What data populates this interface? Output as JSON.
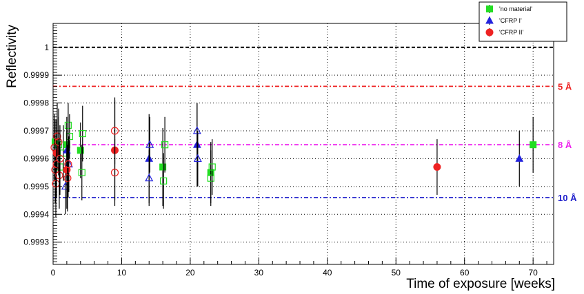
{
  "chart_data": {
    "type": "scatter",
    "title": "",
    "xlabel": "Time of exposure [weeks]",
    "ylabel": "Reflectivity",
    "xlim": [
      0,
      73
    ],
    "ylim": [
      0.99922,
      1.000086
    ],
    "x_ticks": [
      0,
      10,
      20,
      30,
      40,
      50,
      60,
      70
    ],
    "y_ticks": [
      0.9993,
      0.9994,
      0.9995,
      0.9996,
      0.9997,
      0.9998,
      0.9999,
      1
    ],
    "y_tick_labels": [
      "0.9993",
      "0.9994",
      "0.9995",
      "0.9996",
      "0.9997",
      "0.9998",
      "0.9999",
      "1"
    ],
    "grid": true,
    "legend_position": "top-right",
    "reference_lines": [
      {
        "label": "",
        "y": 1.0,
        "color": "#000000"
      },
      {
        "label": "5 Å",
        "y": 0.99986,
        "color": "#ee2222"
      },
      {
        "label": "8 Å",
        "y": 0.99965,
        "color": "#ee22ee"
      },
      {
        "label": "10 Å",
        "y": 0.99946,
        "color": "#2222cc"
      }
    ],
    "series": [
      {
        "name": "'no material'",
        "color": "#22dd22",
        "marker": "square",
        "values": [
          {
            "x": 0.3,
            "y": 0.99966,
            "err": 8e-05,
            "filled": true
          },
          {
            "x": 0.8,
            "y": 0.99965,
            "err": 0.0001,
            "filled": false
          },
          {
            "x": 1.0,
            "y": 0.99957,
            "err": 0.0001,
            "filled": false
          },
          {
            "x": 1.5,
            "y": 0.99962,
            "err": 0.0001,
            "filled": false
          },
          {
            "x": 2.0,
            "y": 0.99965,
            "err": 0.0001,
            "filled": true
          },
          {
            "x": 2.2,
            "y": 0.99972,
            "err": 8e-05,
            "filled": false
          },
          {
            "x": 2.4,
            "y": 0.99968,
            "err": 8e-05,
            "filled": false
          },
          {
            "x": 4.0,
            "y": 0.99963,
            "err": 0.0001,
            "filled": true
          },
          {
            "x": 4.2,
            "y": 0.99955,
            "err": 0.0001,
            "filled": false
          },
          {
            "x": 4.3,
            "y": 0.99969,
            "err": 0.0001,
            "filled": false
          },
          {
            "x": 16.0,
            "y": 0.99957,
            "err": 0.00014,
            "filled": true
          },
          {
            "x": 16.1,
            "y": 0.99952,
            "err": 0.0001,
            "filled": false
          },
          {
            "x": 16.3,
            "y": 0.99965,
            "err": 0.0001,
            "filled": false
          },
          {
            "x": 23.0,
            "y": 0.99955,
            "err": 0.00011,
            "filled": true
          },
          {
            "x": 23.0,
            "y": 0.99953,
            "err": 0.0001,
            "filled": false
          },
          {
            "x": 23.2,
            "y": 0.99957,
            "err": 0.0001,
            "filled": false
          },
          {
            "x": 70.0,
            "y": 0.99965,
            "err": 0.0001,
            "filled": true
          }
        ]
      },
      {
        "name": "'CFRP I'",
        "color": "#2222dd",
        "marker": "triangle",
        "values": [
          {
            "x": 1.8,
            "y": 0.9995,
            "err": 0.0001,
            "filled": false
          },
          {
            "x": 2.0,
            "y": 0.99963,
            "err": 0.0001,
            "filled": true
          },
          {
            "x": 2.3,
            "y": 0.99958,
            "err": 0.0001,
            "filled": false
          },
          {
            "x": 14.0,
            "y": 0.9996,
            "err": 0.00016,
            "filled": true
          },
          {
            "x": 14.0,
            "y": 0.99953,
            "err": 0.0001,
            "filled": false
          },
          {
            "x": 14.1,
            "y": 0.99965,
            "err": 0.0001,
            "filled": false
          },
          {
            "x": 21.0,
            "y": 0.99965,
            "err": 0.00015,
            "filled": true
          },
          {
            "x": 21.0,
            "y": 0.9997,
            "err": 0.0001,
            "filled": false
          },
          {
            "x": 21.1,
            "y": 0.9996,
            "err": 0.0001,
            "filled": false
          },
          {
            "x": 68.0,
            "y": 0.9996,
            "err": 0.0001,
            "filled": true
          }
        ]
      },
      {
        "name": "'CFRP II'",
        "color": "#ee2222",
        "marker": "circle",
        "values": [
          {
            "x": 0.2,
            "y": 0.99964,
            "err": 0.00012,
            "filled": false
          },
          {
            "x": 0.3,
            "y": 0.99956,
            "err": 0.00012,
            "filled": false
          },
          {
            "x": 0.4,
            "y": 0.99951,
            "err": 0.00012,
            "filled": false
          },
          {
            "x": 0.5,
            "y": 0.99962,
            "err": 0.00012,
            "filled": true
          },
          {
            "x": 0.5,
            "y": 0.99958,
            "err": 0.00012,
            "filled": false
          },
          {
            "x": 0.6,
            "y": 0.99968,
            "err": 0.00012,
            "filled": false
          },
          {
            "x": 0.8,
            "y": 0.99966,
            "err": 0.00012,
            "filled": false
          },
          {
            "x": 0.9,
            "y": 0.99954,
            "err": 0.00012,
            "filled": false
          },
          {
            "x": 1.0,
            "y": 0.9996,
            "err": 0.00012,
            "filled": false
          },
          {
            "x": 2.0,
            "y": 0.99956,
            "err": 0.00014,
            "filled": true
          },
          {
            "x": 2.1,
            "y": 0.99953,
            "err": 0.00012,
            "filled": false
          },
          {
            "x": 2.2,
            "y": 0.99958,
            "err": 0.00012,
            "filled": false
          },
          {
            "x": 9.0,
            "y": 0.99963,
            "err": 0.00018,
            "filled": true
          },
          {
            "x": 9.0,
            "y": 0.9997,
            "err": 0.00012,
            "filled": false
          },
          {
            "x": 9.0,
            "y": 0.99955,
            "err": 0.00012,
            "filled": false
          },
          {
            "x": 56.0,
            "y": 0.99957,
            "err": 0.0001,
            "filled": true
          }
        ]
      }
    ]
  }
}
